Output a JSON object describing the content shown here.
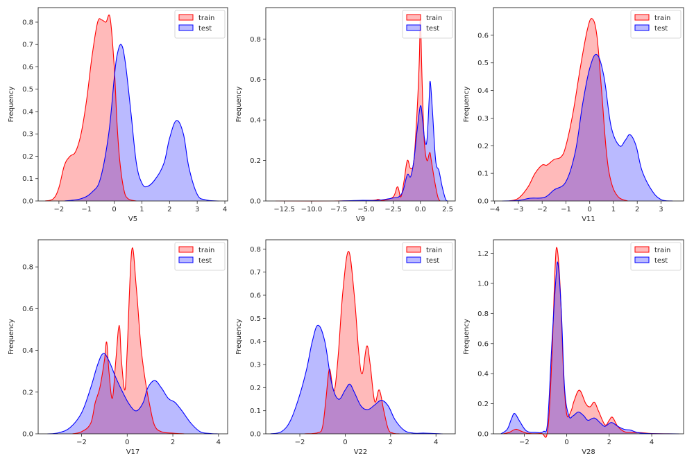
{
  "figure": {
    "legend_labels": [
      "train",
      "test"
    ],
    "colors": {
      "train": "#ff0000",
      "test": "#0000ff",
      "train_fill": "#ff0000",
      "test_fill": "#0000ff",
      "fill_alpha": 0.27
    }
  },
  "chart_data": [
    {
      "type": "area",
      "title": "",
      "xlabel": "V5",
      "ylabel": "Frequency",
      "xlim": [
        -2.75,
        4.1
      ],
      "ylim": [
        0,
        0.865
      ],
      "xticks": [
        -2,
        -1,
        0,
        1,
        2,
        3,
        4
      ],
      "xtick_labels": [
        "−2",
        "−1",
        "0",
        "1",
        "2",
        "3",
        "4"
      ],
      "yticks": [
        0,
        0.1,
        0.2,
        0.3,
        0.4,
        0.5,
        0.6,
        0.7,
        0.8
      ],
      "ytick_labels": [
        "0.0",
        "0.1",
        "0.2",
        "0.3",
        "0.4",
        "0.5",
        "0.6",
        "0.7",
        "0.8"
      ],
      "legend": "top-right",
      "series": [
        {
          "name": "train",
          "x": [
            -2.5,
            -2.2,
            -2.0,
            -1.8,
            -1.6,
            -1.4,
            -1.2,
            -1.0,
            -0.8,
            -0.6,
            -0.45,
            -0.3,
            -0.15,
            0.0,
            0.1,
            0.2,
            0.35,
            0.5,
            0.8
          ],
          "y": [
            0,
            0.01,
            0.06,
            0.16,
            0.2,
            0.22,
            0.3,
            0.45,
            0.65,
            0.8,
            0.81,
            0.8,
            0.82,
            0.6,
            0.35,
            0.18,
            0.05,
            0.01,
            0
          ]
        },
        {
          "name": "test",
          "x": [
            -1.8,
            -1.2,
            -0.8,
            -0.5,
            -0.2,
            0.0,
            0.1,
            0.25,
            0.4,
            0.6,
            0.8,
            1.0,
            1.2,
            1.5,
            1.8,
            2.0,
            2.25,
            2.5,
            2.7,
            3.0,
            3.3,
            3.8
          ],
          "y": [
            0,
            0.01,
            0.04,
            0.1,
            0.3,
            0.55,
            0.65,
            0.7,
            0.62,
            0.4,
            0.17,
            0.08,
            0.065,
            0.1,
            0.17,
            0.28,
            0.36,
            0.3,
            0.15,
            0.03,
            0.005,
            0
          ]
        }
      ]
    },
    {
      "type": "area",
      "title": "",
      "xlabel": "V9",
      "ylabel": "Frequency",
      "xlim": [
        -14.2,
        3.2
      ],
      "ylim": [
        0,
        0.955
      ],
      "xticks": [
        -12.5,
        -10.0,
        -7.5,
        -5.0,
        -2.5,
        0.0,
        2.5
      ],
      "xtick_labels": [
        "−12.5",
        "−10.0",
        "−7.5",
        "−5.0",
        "−2.5",
        "0.0",
        "2.5"
      ],
      "yticks": [
        0,
        0.2,
        0.4,
        0.6,
        0.8
      ],
      "ytick_labels": [
        "0.0",
        "0.2",
        "0.4",
        "0.6",
        "0.8"
      ],
      "legend": "top-right",
      "series": [
        {
          "name": "train",
          "x": [
            -13.3,
            -8.0,
            -4.5,
            -3.9,
            -3.4,
            -2.5,
            -2.1,
            -1.8,
            -1.5,
            -1.2,
            -0.9,
            -0.6,
            -0.3,
            -0.1,
            0.0,
            0.15,
            0.35,
            0.6,
            0.85,
            1.0,
            1.3,
            1.6,
            1.8
          ],
          "y": [
            0,
            0.0,
            0.003,
            0.008,
            0.003,
            0.02,
            0.07,
            0.02,
            0.1,
            0.2,
            0.16,
            0.2,
            0.45,
            0.7,
            0.9,
            0.6,
            0.3,
            0.2,
            0.24,
            0.2,
            0.1,
            0.02,
            0
          ]
        },
        {
          "name": "test",
          "x": [
            -7.5,
            -5.5,
            -4.0,
            -3.0,
            -2.5,
            -2.0,
            -1.6,
            -1.2,
            -0.9,
            -0.6,
            -0.3,
            0.0,
            0.2,
            0.4,
            0.6,
            0.8,
            0.9,
            1.1,
            1.4,
            1.7,
            2.0,
            2.3,
            2.5
          ],
          "y": [
            0,
            0.003,
            0.003,
            0.01,
            0.015,
            0.02,
            0.05,
            0.13,
            0.12,
            0.2,
            0.35,
            0.47,
            0.4,
            0.3,
            0.3,
            0.5,
            0.59,
            0.45,
            0.2,
            0.15,
            0.07,
            0.01,
            0
          ]
        }
      ]
    },
    {
      "type": "area",
      "title": "",
      "xlabel": "V11",
      "ylabel": "Frequency",
      "xlim": [
        -4.05,
        3.95
      ],
      "ylim": [
        0,
        0.7
      ],
      "xticks": [
        -4,
        -3,
        -2,
        -1,
        0,
        1,
        2,
        3
      ],
      "xtick_labels": [
        "−4",
        "−3",
        "−2",
        "−1",
        "0",
        "1",
        "2",
        "3"
      ],
      "yticks": [
        0,
        0.1,
        0.2,
        0.3,
        0.4,
        0.5,
        0.6
      ],
      "ytick_labels": [
        "0.0",
        "0.1",
        "0.2",
        "0.3",
        "0.4",
        "0.5",
        "0.6"
      ],
      "legend": "top-right",
      "series": [
        {
          "name": "train",
          "x": [
            -3.4,
            -3.0,
            -2.6,
            -2.3,
            -2.0,
            -1.8,
            -1.5,
            -1.2,
            -1.0,
            -0.7,
            -0.4,
            -0.1,
            0.1,
            0.3,
            0.5,
            0.7,
            0.9,
            1.2,
            1.6
          ],
          "y": [
            0,
            0.01,
            0.05,
            0.1,
            0.13,
            0.13,
            0.15,
            0.16,
            0.2,
            0.32,
            0.48,
            0.62,
            0.66,
            0.6,
            0.4,
            0.18,
            0.07,
            0.015,
            0
          ]
        },
        {
          "name": "test",
          "x": [
            -3.7,
            -3.0,
            -2.5,
            -1.9,
            -1.5,
            -1.0,
            -0.6,
            -0.3,
            0.0,
            0.3,
            0.6,
            0.9,
            1.25,
            1.5,
            1.7,
            1.95,
            2.2,
            2.6,
            3.0,
            3.5
          ],
          "y": [
            0,
            0.002,
            0.01,
            0.013,
            0.04,
            0.07,
            0.18,
            0.35,
            0.48,
            0.53,
            0.45,
            0.27,
            0.2,
            0.22,
            0.24,
            0.2,
            0.11,
            0.04,
            0.005,
            0
          ]
        }
      ]
    },
    {
      "type": "area",
      "title": "",
      "xlabel": "V17",
      "ylabel": "Frequency",
      "xlim": [
        -3.9,
        4.4
      ],
      "ylim": [
        0,
        0.93
      ],
      "xticks": [
        -2,
        0,
        2,
        4
      ],
      "xtick_labels": [
        "−2",
        "0",
        "2",
        "4"
      ],
      "yticks": [
        0,
        0.2,
        0.4,
        0.6,
        0.8
      ],
      "ytick_labels": [
        "0.0",
        "0.2",
        "0.4",
        "0.6",
        "0.8"
      ],
      "legend": "top-right",
      "series": [
        {
          "name": "train",
          "x": [
            -2.4,
            -2.0,
            -1.6,
            -1.4,
            -1.2,
            -1.0,
            -0.9,
            -0.8,
            -0.65,
            -0.5,
            -0.35,
            -0.25,
            -0.1,
            0.0,
            0.2,
            0.4,
            0.6,
            0.8,
            1.0,
            1.2,
            1.5,
            2.0,
            2.5
          ],
          "y": [
            0,
            0.01,
            0.05,
            0.15,
            0.22,
            0.35,
            0.44,
            0.3,
            0.17,
            0.35,
            0.52,
            0.35,
            0.21,
            0.4,
            0.88,
            0.7,
            0.42,
            0.25,
            0.13,
            0.04,
            0.01,
            0.003,
            0
          ]
        },
        {
          "name": "test",
          "x": [
            -3.5,
            -3.0,
            -2.5,
            -2.0,
            -1.6,
            -1.3,
            -1.05,
            -0.8,
            -0.5,
            -0.2,
            0.1,
            0.4,
            0.7,
            0.9,
            1.2,
            1.5,
            1.8,
            2.1,
            2.4,
            2.8,
            3.2,
            3.6,
            4.0
          ],
          "y": [
            0,
            0.005,
            0.03,
            0.1,
            0.22,
            0.33,
            0.385,
            0.35,
            0.27,
            0.2,
            0.14,
            0.11,
            0.15,
            0.22,
            0.255,
            0.22,
            0.17,
            0.15,
            0.11,
            0.05,
            0.01,
            0.002,
            0
          ]
        }
      ]
    },
    {
      "type": "area",
      "title": "",
      "xlabel": "V22",
      "ylabel": "Frequency",
      "xlim": [
        -3.5,
        4.85
      ],
      "ylim": [
        0,
        0.84
      ],
      "xticks": [
        -2,
        0,
        2,
        4
      ],
      "xtick_labels": [
        "−2",
        "0",
        "2",
        "4"
      ],
      "yticks": [
        0,
        0.1,
        0.2,
        0.3,
        0.4,
        0.5,
        0.6,
        0.7,
        0.8
      ],
      "ytick_labels": [
        "0.0",
        "0.1",
        "0.2",
        "0.3",
        "0.4",
        "0.5",
        "0.6",
        "0.7",
        "0.8"
      ],
      "legend": "top-right",
      "series": [
        {
          "name": "train",
          "x": [
            -1.8,
            -1.2,
            -1.0,
            -0.85,
            -0.7,
            -0.55,
            -0.45,
            -0.3,
            -0.1,
            0.15,
            0.4,
            0.6,
            0.75,
            0.95,
            1.1,
            1.3,
            1.5,
            1.7,
            1.9,
            2.1,
            2.4
          ],
          "y": [
            0,
            0.005,
            0.03,
            0.15,
            0.28,
            0.2,
            0.2,
            0.35,
            0.62,
            0.79,
            0.6,
            0.35,
            0.26,
            0.38,
            0.3,
            0.14,
            0.19,
            0.1,
            0.02,
            0.003,
            0
          ]
        },
        {
          "name": "test",
          "x": [
            -3.3,
            -2.8,
            -2.4,
            -2.0,
            -1.7,
            -1.45,
            -1.2,
            -0.9,
            -0.6,
            -0.3,
            0.0,
            0.2,
            0.4,
            0.7,
            1.0,
            1.3,
            1.6,
            1.9,
            2.2,
            2.6,
            3.0,
            3.5,
            4.3
          ],
          "y": [
            0,
            0.01,
            0.06,
            0.17,
            0.28,
            0.4,
            0.47,
            0.4,
            0.22,
            0.15,
            0.19,
            0.215,
            0.18,
            0.12,
            0.105,
            0.125,
            0.145,
            0.12,
            0.06,
            0.015,
            0.003,
            0.003,
            0
          ]
        }
      ]
    },
    {
      "type": "area",
      "title": "",
      "xlabel": "V28",
      "ylabel": "Frequency",
      "xlim": [
        -3.45,
        5.5
      ],
      "ylim": [
        0,
        1.29
      ],
      "xticks": [
        -2,
        0,
        2,
        4
      ],
      "xtick_labels": [
        "−2",
        "0",
        "2",
        "4"
      ],
      "yticks": [
        0,
        0.2,
        0.4,
        0.6,
        0.8,
        1.0,
        1.2
      ],
      "ytick_labels": [
        "0.0",
        "0.2",
        "0.4",
        "0.6",
        "0.8",
        "1.0",
        "1.2"
      ],
      "legend": "top-right",
      "series": [
        {
          "name": "train",
          "x": [
            -3.0,
            -2.7,
            -2.4,
            -2.1,
            -1.8,
            -1.2,
            -0.9,
            -0.7,
            -0.55,
            -0.45,
            -0.3,
            -0.15,
            0.0,
            0.2,
            0.35,
            0.6,
            0.9,
            1.1,
            1.3,
            1.5,
            1.8,
            2.0,
            2.15,
            2.4,
            2.7,
            3.0,
            3.5,
            4.0,
            5.0
          ],
          "y": [
            0,
            0.01,
            0.03,
            0.015,
            0.003,
            0.003,
            0.02,
            0.5,
            1.1,
            1.23,
            0.95,
            0.4,
            0.13,
            0.15,
            0.22,
            0.29,
            0.2,
            0.18,
            0.21,
            0.15,
            0.06,
            0.09,
            0.11,
            0.05,
            0.015,
            0.01,
            0.008,
            0.002,
            0
          ]
        },
        {
          "name": "test",
          "x": [
            -3.1,
            -2.8,
            -2.6,
            -2.45,
            -2.2,
            -1.9,
            -1.5,
            -1.1,
            -0.9,
            -0.7,
            -0.5,
            -0.4,
            -0.25,
            -0.1,
            0.1,
            0.3,
            0.55,
            0.8,
            1.0,
            1.3,
            1.6,
            1.8,
            2.1,
            2.4,
            2.7,
            3.0,
            3.3,
            3.8,
            5.3
          ],
          "y": [
            0,
            0.03,
            0.1,
            0.135,
            0.08,
            0.02,
            0.01,
            0.015,
            0.08,
            0.6,
            1.05,
            1.12,
            0.8,
            0.3,
            0.12,
            0.12,
            0.145,
            0.12,
            0.09,
            0.105,
            0.07,
            0.05,
            0.075,
            0.05,
            0.03,
            0.025,
            0.01,
            0.002,
            0
          ]
        }
      ]
    }
  ]
}
